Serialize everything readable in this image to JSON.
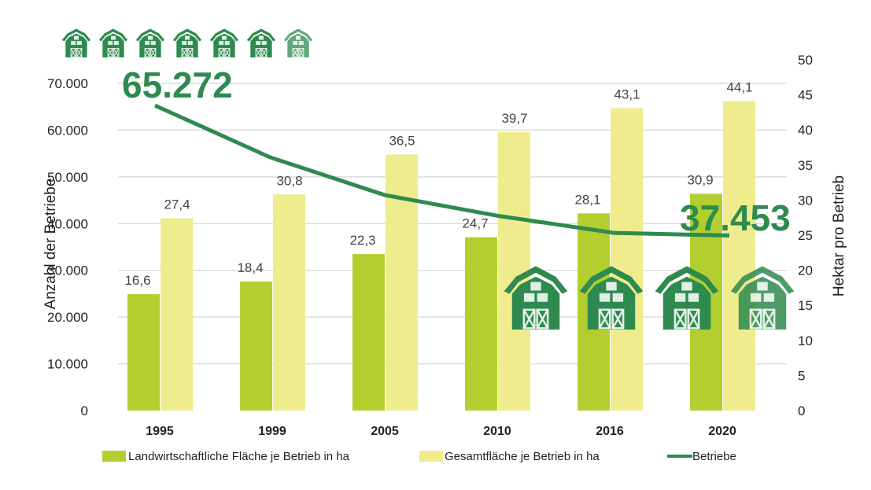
{
  "chart_data": {
    "type": "bar+line",
    "categories": [
      "1995",
      "1999",
      "2005",
      "2010",
      "2016",
      "2020"
    ],
    "series": [
      {
        "name": "Landwirtschaftliche Fläche je Betrieb in ha",
        "type": "bar",
        "axis": "right",
        "color": "#b2cf2f",
        "values": [
          16.6,
          18.4,
          22.3,
          24.7,
          28.1,
          30.9
        ],
        "labels": [
          "16,6",
          "18,4",
          "22,3",
          "24,7",
          "28,1",
          "30,9"
        ]
      },
      {
        "name": "Gesamtfläche je Betrieb in ha",
        "type": "bar",
        "axis": "right",
        "color": "#eeec8c",
        "values": [
          27.4,
          30.8,
          36.5,
          39.7,
          43.1,
          44.1
        ],
        "labels": [
          "27,4",
          "30,8",
          "36,5",
          "39,7",
          "43,1",
          "44,1"
        ]
      },
      {
        "name": "Betriebe",
        "type": "line",
        "axis": "left",
        "color": "#2e8a4f",
        "values": [
          65272,
          54200,
          46100,
          41600,
          38000,
          37453
        ]
      }
    ],
    "line_annotations": {
      "start": "65.272",
      "end": "37.453"
    },
    "ylabel_left": "Anzahl der Betriebe",
    "ylabel_right": "Hektar pro Betrieb",
    "ylim_left": [
      0,
      70000
    ],
    "ylim_right": [
      0,
      50
    ],
    "yticks_left": [
      "0",
      "10.000",
      "20.000",
      "30.000",
      "40.000",
      "50.000",
      "60.000",
      "70.000"
    ],
    "yticks_right": [
      "0",
      "5",
      "10",
      "15",
      "20",
      "25",
      "30",
      "35",
      "40",
      "45",
      "50"
    ],
    "grid": true,
    "legend_position": "bottom",
    "decor_icon": "barn-icon"
  }
}
